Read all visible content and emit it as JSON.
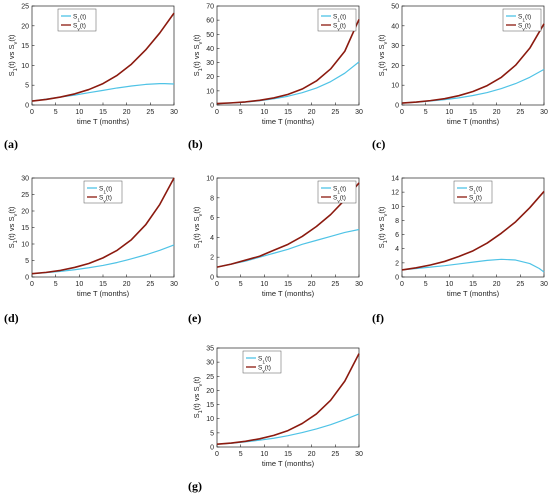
{
  "colors": {
    "s1": "#4fc3e6",
    "sv": "#8b1a0f",
    "axis": "#222222"
  },
  "chart_data": [
    {
      "type": "line",
      "panel": "(a)",
      "xlabel": "time T (months)",
      "ylabel": "S1(t) vs Sv(t)",
      "xlim": [
        0,
        30
      ],
      "ylim": [
        0,
        25
      ],
      "xticks": [
        "0",
        "5",
        "10",
        "15",
        "20",
        "25",
        "30"
      ],
      "yticks": [
        "0",
        "5",
        "10",
        "15",
        "20",
        "25"
      ],
      "legend_position": "top-left",
      "grid": false,
      "series": [
        {
          "name": "S1(t)",
          "color": "s1",
          "x": [
            0,
            3,
            6,
            9,
            12,
            15,
            18,
            21,
            24,
            27,
            28,
            30
          ],
          "y": [
            1,
            1.5,
            2,
            2.5,
            3.1,
            3.7,
            4.3,
            4.8,
            5.2,
            5.4,
            5.4,
            5.3
          ]
        },
        {
          "name": "Sv(t)",
          "color": "sv",
          "x": [
            0,
            3,
            6,
            9,
            12,
            15,
            18,
            21,
            24,
            27,
            30
          ],
          "y": [
            1,
            1.4,
            2,
            2.8,
            3.9,
            5.4,
            7.5,
            10.3,
            13.9,
            18.2,
            23.2
          ]
        }
      ]
    },
    {
      "type": "line",
      "panel": "(b)",
      "xlabel": "time T (months)",
      "ylabel": "S1(t) vs Sv(t)",
      "xlim": [
        0,
        30
      ],
      "ylim": [
        0,
        70
      ],
      "xticks": [
        "0",
        "5",
        "10",
        "15",
        "20",
        "25",
        "30"
      ],
      "yticks": [
        "0",
        "10",
        "20",
        "30",
        "40",
        "50",
        "60",
        "70"
      ],
      "legend_position": "top-right",
      "grid": false,
      "series": [
        {
          "name": "S1(t)",
          "color": "s1",
          "x": [
            0,
            3,
            6,
            9,
            12,
            15,
            18,
            21,
            24,
            27,
            30
          ],
          "y": [
            1,
            1.4,
            2,
            3,
            4.4,
            6.2,
            8.7,
            12,
            16.5,
            22.5,
            30.5
          ]
        },
        {
          "name": "Sv(t)",
          "color": "sv",
          "x": [
            0,
            3,
            6,
            9,
            12,
            15,
            18,
            21,
            24,
            27,
            30
          ],
          "y": [
            1,
            1.5,
            2.2,
            3.3,
            5,
            7.5,
            11.3,
            17,
            25.5,
            38,
            60.5
          ]
        }
      ]
    },
    {
      "type": "line",
      "panel": "(c)",
      "xlabel": "time T (months)",
      "ylabel": "S1(t) vs Sv(t)",
      "xlim": [
        0,
        30
      ],
      "ylim": [
        0,
        50
      ],
      "xticks": [
        "0",
        "5",
        "10",
        "15",
        "20",
        "25",
        "30"
      ],
      "yticks": [
        "0",
        "10",
        "20",
        "30",
        "40",
        "50"
      ],
      "legend_position": "top-right",
      "grid": false,
      "series": [
        {
          "name": "S1(t)",
          "color": "s1",
          "x": [
            0,
            3,
            6,
            9,
            12,
            15,
            18,
            21,
            24,
            27,
            30
          ],
          "y": [
            1,
            1.4,
            2,
            2.7,
            3.6,
            4.8,
            6.3,
            8.3,
            10.8,
            14,
            18
          ]
        },
        {
          "name": "Sv(t)",
          "color": "sv",
          "x": [
            0,
            3,
            6,
            9,
            12,
            15,
            18,
            21,
            24,
            27,
            30
          ],
          "y": [
            1,
            1.5,
            2.2,
            3.2,
            4.7,
            6.8,
            9.8,
            14,
            20.1,
            28.7,
            41
          ]
        }
      ]
    },
    {
      "type": "line",
      "panel": "(d)",
      "xlabel": "time T (months)",
      "ylabel": "S1(t) vs Sv(t)",
      "xlim": [
        0,
        30
      ],
      "ylim": [
        0,
        30
      ],
      "xticks": [
        "0",
        "5",
        "10",
        "15",
        "20",
        "25",
        "30"
      ],
      "yticks": [
        "0",
        "5",
        "10",
        "15",
        "20",
        "25",
        "30"
      ],
      "legend_position": "top-center",
      "grid": false,
      "series": [
        {
          "name": "S1(t)",
          "color": "s1",
          "x": [
            0,
            3,
            6,
            9,
            12,
            15,
            18,
            21,
            24,
            27,
            30
          ],
          "y": [
            1,
            1.3,
            1.7,
            2.2,
            2.8,
            3.5,
            4.4,
            5.5,
            6.7,
            8.1,
            9.7
          ]
        },
        {
          "name": "Sv(t)",
          "color": "sv",
          "x": [
            0,
            3,
            6,
            9,
            12,
            15,
            18,
            21,
            24,
            27,
            30
          ],
          "y": [
            1,
            1.4,
            2,
            2.9,
            4.1,
            5.8,
            8.1,
            11.3,
            15.8,
            22,
            30
          ]
        }
      ]
    },
    {
      "type": "line",
      "panel": "(e)",
      "xlabel": "time T (months)",
      "ylabel": "S1(t) vs Sv(t)",
      "xlim": [
        0,
        30
      ],
      "ylim": [
        0,
        10
      ],
      "xticks": [
        "0",
        "5",
        "10",
        "15",
        "20",
        "25",
        "30"
      ],
      "yticks": [
        "0",
        "2",
        "4",
        "6",
        "8",
        "10"
      ],
      "legend_position": "top-right",
      "grid": false,
      "series": [
        {
          "name": "S1(t)",
          "color": "s1",
          "x": [
            0,
            3,
            6,
            9,
            12,
            15,
            18,
            21,
            24,
            27,
            30
          ],
          "y": [
            1,
            1.3,
            1.6,
            2,
            2.4,
            2.8,
            3.3,
            3.7,
            4.1,
            4.5,
            4.8
          ]
        },
        {
          "name": "Sv(t)",
          "color": "sv",
          "x": [
            0,
            3,
            6,
            9,
            12,
            15,
            18,
            21,
            24,
            27,
            30
          ],
          "y": [
            1,
            1.3,
            1.7,
            2.1,
            2.7,
            3.3,
            4.1,
            5.1,
            6.3,
            7.8,
            9.5
          ]
        }
      ]
    },
    {
      "type": "line",
      "panel": "(f)",
      "xlabel": "time T (months)",
      "ylabel": "S1(t) vs Sv(t)",
      "xlim": [
        0,
        30
      ],
      "ylim": [
        0,
        14
      ],
      "xticks": [
        "0",
        "5",
        "10",
        "15",
        "20",
        "25",
        "30"
      ],
      "yticks": [
        "0",
        "2",
        "4",
        "6",
        "8",
        "10",
        "12",
        "14"
      ],
      "legend_position": "top-center",
      "grid": false,
      "series": [
        {
          "name": "S1(t)",
          "color": "s1",
          "x": [
            0,
            3,
            6,
            9,
            12,
            15,
            18,
            21,
            24,
            27,
            29,
            30
          ],
          "y": [
            1,
            1.2,
            1.4,
            1.6,
            1.85,
            2.1,
            2.35,
            2.5,
            2.4,
            1.9,
            1.2,
            0.7
          ]
        },
        {
          "name": "Sv(t)",
          "color": "sv",
          "x": [
            0,
            3,
            6,
            9,
            12,
            15,
            18,
            21,
            24,
            27,
            30
          ],
          "y": [
            1,
            1.3,
            1.7,
            2.2,
            2.9,
            3.7,
            4.8,
            6.2,
            7.8,
            9.8,
            12.1
          ]
        }
      ]
    },
    {
      "type": "line",
      "panel": "(g)",
      "xlabel": "time T (months)",
      "ylabel": "S1(t) vs Sv(t)",
      "xlim": [
        0,
        30
      ],
      "ylim": [
        0,
        35
      ],
      "xticks": [
        "0",
        "5",
        "10",
        "15",
        "20",
        "25",
        "30"
      ],
      "yticks": [
        "0",
        "5",
        "10",
        "15",
        "20",
        "25",
        "30",
        "35"
      ],
      "legend_position": "top-left",
      "grid": false,
      "series": [
        {
          "name": "S1(t)",
          "color": "s1",
          "x": [
            0,
            3,
            6,
            9,
            12,
            15,
            18,
            21,
            24,
            27,
            30
          ],
          "y": [
            1,
            1.3,
            1.8,
            2.4,
            3.1,
            4,
            5.1,
            6.4,
            7.9,
            9.7,
            11.7
          ]
        },
        {
          "name": "Sv(t)",
          "color": "sv",
          "x": [
            0,
            3,
            6,
            9,
            12,
            15,
            18,
            21,
            24,
            27,
            30
          ],
          "y": [
            1,
            1.4,
            2,
            2.9,
            4.1,
            5.8,
            8.3,
            11.7,
            16.5,
            23.3,
            33
          ]
        }
      ]
    }
  ]
}
